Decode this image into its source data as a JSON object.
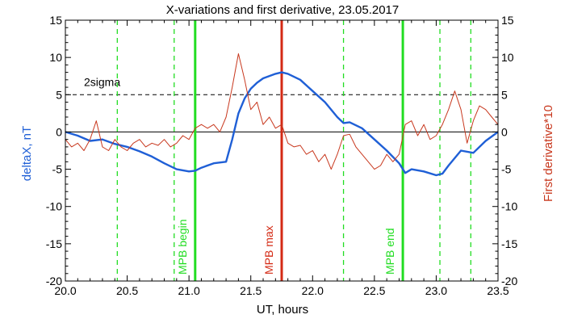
{
  "chart_data": {
    "type": "line",
    "title": "X-variations and first derivative, 23.05.2017",
    "xlabel": "UT, hours",
    "ylabel_left": "deltaX, nT",
    "ylabel_right": "First derivative*10",
    "xlim": [
      20.0,
      23.5
    ],
    "ylim": [
      -20,
      15
    ],
    "x_ticks": [
      20.0,
      20.5,
      21.0,
      21.5,
      22.0,
      22.5,
      23.0,
      23.5
    ],
    "x_tick_labels": [
      "20.0",
      "20.5",
      "21.0",
      "21.5",
      "22.0",
      "22.5",
      "23.0",
      "23.5"
    ],
    "y_ticks": [
      -20,
      -15,
      -10,
      -5,
      0,
      5,
      10,
      15
    ],
    "y_tick_labels": [
      "-20",
      "-15",
      "-10",
      "-5",
      "0",
      "5",
      "10",
      "15"
    ],
    "colors": {
      "deltaX": "#1f5fd6",
      "derivative": "#c8381e",
      "mpb_green": "#22dd22",
      "mpb_max": "#d42a14"
    },
    "threshold": {
      "label": "2sigma",
      "value": 5
    },
    "series": [
      {
        "name": "deltaX, nT",
        "axis": "left",
        "x": [
          20.0,
          20.1,
          20.2,
          20.3,
          20.4,
          20.5,
          20.6,
          20.7,
          20.8,
          20.9,
          21.0,
          21.05,
          21.1,
          21.2,
          21.3,
          21.35,
          21.4,
          21.45,
          21.5,
          21.55,
          21.6,
          21.7,
          21.75,
          21.8,
          21.9,
          22.0,
          22.1,
          22.2,
          22.25,
          22.3,
          22.4,
          22.5,
          22.6,
          22.7,
          22.75,
          22.8,
          22.9,
          23.0,
          23.05,
          23.1,
          23.2,
          23.3,
          23.4,
          23.5
        ],
        "values": [
          0,
          -0.5,
          -1.2,
          -1.0,
          -1.6,
          -2.0,
          -2.6,
          -3.3,
          -4.2,
          -5.0,
          -5.3,
          -5.2,
          -4.8,
          -4.2,
          -4.0,
          -1.0,
          2.5,
          4.5,
          5.8,
          6.6,
          7.2,
          7.8,
          8.0,
          7.8,
          7.0,
          5.5,
          4.0,
          2.0,
          1.2,
          1.3,
          0.5,
          -1.0,
          -2.5,
          -4.2,
          -5.5,
          -5.0,
          -5.3,
          -5.8,
          -5.6,
          -4.5,
          -2.5,
          -2.8,
          -1.2,
          0
        ],
        "name_visible": false
      },
      {
        "name": "First derivative*10",
        "axis": "right",
        "x": [
          20.0,
          20.05,
          20.1,
          20.15,
          20.2,
          20.25,
          20.3,
          20.35,
          20.4,
          20.45,
          20.5,
          20.55,
          20.6,
          20.65,
          20.7,
          20.75,
          20.8,
          20.85,
          20.9,
          20.95,
          21.0,
          21.05,
          21.1,
          21.15,
          21.2,
          21.25,
          21.3,
          21.35,
          21.4,
          21.45,
          21.5,
          21.55,
          21.6,
          21.65,
          21.7,
          21.75,
          21.8,
          21.85,
          21.9,
          21.95,
          22.0,
          22.05,
          22.1,
          22.15,
          22.2,
          22.25,
          22.3,
          22.35,
          22.4,
          22.45,
          22.5,
          22.55,
          22.6,
          22.65,
          22.7,
          22.75,
          22.8,
          22.85,
          22.9,
          22.95,
          23.0,
          23.05,
          23.1,
          23.15,
          23.2,
          23.25,
          23.3,
          23.35,
          23.4,
          23.45,
          23.5
        ],
        "values": [
          -1.0,
          -2.0,
          -1.5,
          -2.5,
          -1.0,
          1.5,
          -2.0,
          -2.5,
          -1.0,
          -2.0,
          -2.5,
          -1.5,
          -1.0,
          -2.0,
          -1.5,
          -1.8,
          -1.0,
          -2.0,
          -1.5,
          -0.5,
          -1.0,
          0.5,
          1.0,
          0.5,
          1.0,
          0.0,
          2.0,
          6.0,
          10.5,
          7.0,
          3.0,
          4.0,
          1.0,
          2.0,
          0.5,
          1.0,
          -1.5,
          -2.0,
          -1.8,
          -3.0,
          -2.5,
          -4.0,
          -3.0,
          -5.0,
          -3.0,
          -0.5,
          -0.3,
          -2.0,
          -3.0,
          -4.0,
          -5.0,
          -4.5,
          -3.0,
          -4.0,
          -3.0,
          1.0,
          1.5,
          -0.5,
          1.0,
          -1.0,
          -0.5,
          1.0,
          3.0,
          5.5,
          3.0,
          -1.5,
          1.5,
          3.5,
          3.0,
          2.0,
          1.0
        ],
        "name_visible": false
      }
    ],
    "vertical_markers": [
      {
        "x": 20.42,
        "style": "dashed-green"
      },
      {
        "x": 20.88,
        "style": "dashed-green"
      },
      {
        "x": 21.05,
        "style": "solid-green",
        "label": "MPB begin"
      },
      {
        "x": 21.75,
        "style": "solid-red",
        "label": "MPB max"
      },
      {
        "x": 22.25,
        "style": "dashed-green"
      },
      {
        "x": 22.73,
        "style": "solid-green",
        "label": "MPB end"
      },
      {
        "x": 23.03,
        "style": "dashed-green"
      },
      {
        "x": 23.28,
        "style": "dashed-green"
      }
    ]
  }
}
